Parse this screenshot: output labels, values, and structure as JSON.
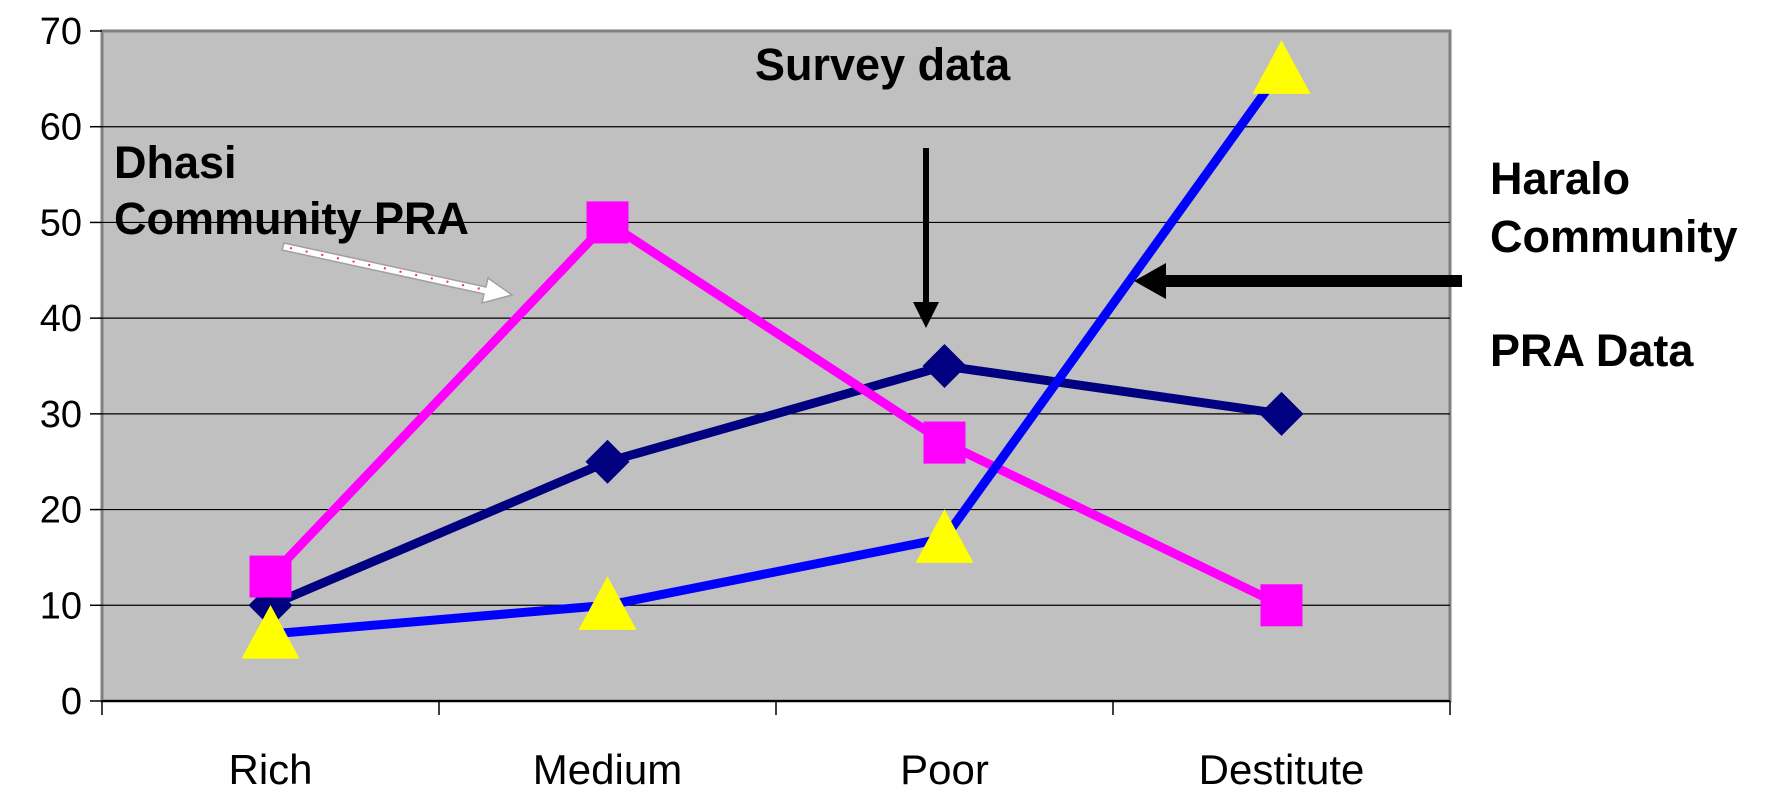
{
  "chart_data": {
    "type": "line",
    "categories": [
      "Rich",
      "Medium",
      "Poor",
      "Destitute"
    ],
    "series": [
      {
        "values": [
          10,
          25,
          35,
          30
        ],
        "color": "#000080",
        "marker": "diamond"
      },
      {
        "values": [
          13,
          50,
          27,
          10
        ],
        "color": "#ff00ff",
        "marker": "square"
      },
      {
        "values": [
          7,
          10,
          17,
          66
        ],
        "color": "#0000ff",
        "marker": "triangle",
        "marker_color": "#ffff00"
      }
    ],
    "ylim": [
      0,
      70
    ],
    "yticks": [
      0,
      10,
      20,
      30,
      40,
      50,
      60,
      70
    ],
    "grid": true,
    "plot_background": "#c0c0c0",
    "annotations": {
      "survey": "Survey data",
      "dhasi_line1": "Dhasi",
      "dhasi_line2": "Community PRA",
      "haralo_line1": "Haralo",
      "haralo_line2": "Community",
      "haralo_line3": "PRA Data"
    }
  }
}
